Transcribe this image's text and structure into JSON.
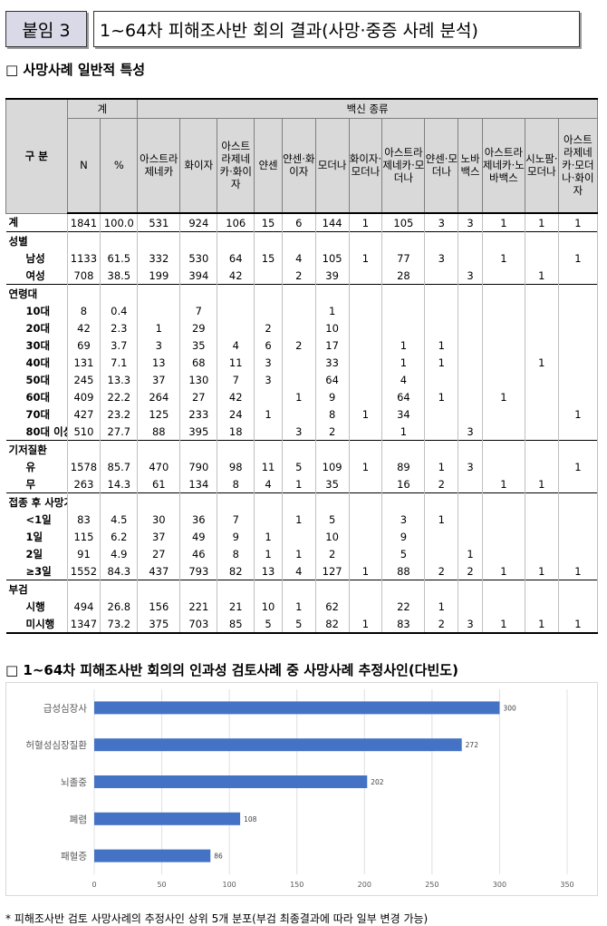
{
  "header": {
    "badge": "붙임 3",
    "title": "1~64차 피해조사반 회의 결과(사망·중증 사례 분석)"
  },
  "section1": {
    "heading": "□ 사망사례 일반적 특성"
  },
  "table": {
    "col_header_gu": "구 분",
    "col_header_total": "계",
    "col_header_vaccine": "백신 종류",
    "col_n": "N",
    "col_pct": "%",
    "vaccines": [
      "아스트라제네카",
      "화이자",
      "아스트라제네카·화이자",
      "얀센",
      "얀센·화이자",
      "모더나",
      "화이자·모더나",
      "아스트라제네카·모더나",
      "얀센·모더나",
      "노바백스",
      "아스트라제네카·노바백스",
      "시노팜·모더나",
      "아스트라제네카·모더나·화이자"
    ],
    "rows": [
      {
        "label": "계",
        "type": "group-data",
        "cells": [
          "1841",
          "100.0",
          "531",
          "924",
          "106",
          "15",
          "6",
          "144",
          "1",
          "105",
          "3",
          "3",
          "1",
          "1",
          "1"
        ]
      },
      {
        "label": "성별",
        "type": "group",
        "cells": []
      },
      {
        "label": "남성",
        "type": "sub",
        "cells": [
          "1133",
          "61.5",
          "332",
          "530",
          "64",
          "15",
          "4",
          "105",
          "1",
          "77",
          "3",
          "",
          "1",
          "",
          "1"
        ]
      },
      {
        "label": "여성",
        "type": "sub",
        "cells": [
          "708",
          "38.5",
          "199",
          "394",
          "42",
          "",
          "2",
          "39",
          "",
          "28",
          "",
          "3",
          "",
          "1",
          ""
        ]
      },
      {
        "label": "연령대",
        "type": "group",
        "cells": []
      },
      {
        "label": "10대",
        "type": "sub",
        "cells": [
          "8",
          "0.4",
          "",
          "7",
          "",
          "",
          "",
          "1",
          "",
          "",
          "",
          "",
          "",
          "",
          ""
        ]
      },
      {
        "label": "20대",
        "type": "sub",
        "cells": [
          "42",
          "2.3",
          "1",
          "29",
          "",
          "2",
          "",
          "10",
          "",
          "",
          "",
          "",
          "",
          "",
          ""
        ]
      },
      {
        "label": "30대",
        "type": "sub",
        "cells": [
          "69",
          "3.7",
          "3",
          "35",
          "4",
          "6",
          "2",
          "17",
          "",
          "1",
          "1",
          "",
          "",
          "",
          ""
        ]
      },
      {
        "label": "40대",
        "type": "sub",
        "cells": [
          "131",
          "7.1",
          "13",
          "68",
          "11",
          "3",
          "",
          "33",
          "",
          "1",
          "1",
          "",
          "",
          "1",
          ""
        ]
      },
      {
        "label": "50대",
        "type": "sub",
        "cells": [
          "245",
          "13.3",
          "37",
          "130",
          "7",
          "3",
          "",
          "64",
          "",
          "4",
          "",
          "",
          "",
          "",
          ""
        ]
      },
      {
        "label": "60대",
        "type": "sub",
        "cells": [
          "409",
          "22.2",
          "264",
          "27",
          "42",
          "",
          "1",
          "9",
          "",
          "64",
          "1",
          "",
          "1",
          "",
          ""
        ]
      },
      {
        "label": "70대",
        "type": "sub",
        "cells": [
          "427",
          "23.2",
          "125",
          "233",
          "24",
          "1",
          "",
          "8",
          "1",
          "34",
          "",
          "",
          "",
          "",
          "1"
        ]
      },
      {
        "label": "80대 이상",
        "type": "sub",
        "cells": [
          "510",
          "27.7",
          "88",
          "395",
          "18",
          "",
          "3",
          "2",
          "",
          "1",
          "",
          "3",
          "",
          "",
          ""
        ]
      },
      {
        "label": "기저질환",
        "type": "group",
        "cells": []
      },
      {
        "label": "유",
        "type": "sub",
        "cells": [
          "1578",
          "85.7",
          "470",
          "790",
          "98",
          "11",
          "5",
          "109",
          "1",
          "89",
          "1",
          "3",
          "",
          "",
          "1"
        ]
      },
      {
        "label": "무",
        "type": "sub",
        "cells": [
          "263",
          "14.3",
          "61",
          "134",
          "8",
          "4",
          "1",
          "35",
          "",
          "16",
          "2",
          "",
          "1",
          "1",
          ""
        ]
      },
      {
        "label": "접종 후 사망기간",
        "type": "group",
        "cells": []
      },
      {
        "label": "<1일",
        "type": "sub",
        "cells": [
          "83",
          "4.5",
          "30",
          "36",
          "7",
          "",
          "1",
          "5",
          "",
          "3",
          "1",
          "",
          "",
          "",
          ""
        ]
      },
      {
        "label": "1일",
        "type": "sub",
        "cells": [
          "115",
          "6.2",
          "37",
          "49",
          "9",
          "1",
          "",
          "10",
          "",
          "9",
          "",
          "",
          "",
          "",
          ""
        ]
      },
      {
        "label": "2일",
        "type": "sub",
        "cells": [
          "91",
          "4.9",
          "27",
          "46",
          "8",
          "1",
          "1",
          "2",
          "",
          "5",
          "",
          "1",
          "",
          "",
          ""
        ]
      },
      {
        "label": "≥3일",
        "type": "sub",
        "cells": [
          "1552",
          "84.3",
          "437",
          "793",
          "82",
          "13",
          "4",
          "127",
          "1",
          "88",
          "2",
          "2",
          "1",
          "1",
          "1"
        ]
      },
      {
        "label": "부검",
        "type": "group",
        "cells": []
      },
      {
        "label": "시행",
        "type": "sub",
        "cells": [
          "494",
          "26.8",
          "156",
          "221",
          "21",
          "10",
          "1",
          "62",
          "",
          "22",
          "1",
          "",
          "",
          "",
          ""
        ]
      },
      {
        "label": "미시행",
        "type": "sub",
        "cells": [
          "1347",
          "73.2",
          "375",
          "703",
          "85",
          "5",
          "5",
          "82",
          "1",
          "83",
          "2",
          "3",
          "1",
          "1",
          "1"
        ]
      }
    ]
  },
  "section2": {
    "heading": "□ 1~64차 피해조사반 회의의 인과성 검토사례 중 사망사례 추정사인(다빈도)"
  },
  "chart_data": {
    "type": "bar",
    "orientation": "horizontal",
    "categories": [
      "급성심장사",
      "허혈성심장질환",
      "뇌졸중",
      "폐렴",
      "패혈증"
    ],
    "values": [
      300,
      272,
      202,
      108,
      86
    ],
    "xlim": [
      0,
      350
    ],
    "xticks": [
      0,
      50,
      100,
      150,
      200,
      250,
      300,
      350
    ],
    "grid": true,
    "bar_color": "#4472c4"
  },
  "footnote": "* 피해조사반 검토 사망사례의 추정사인 상위 5개 분포(부검 최종결과에 따라 일부 변경 가능)"
}
